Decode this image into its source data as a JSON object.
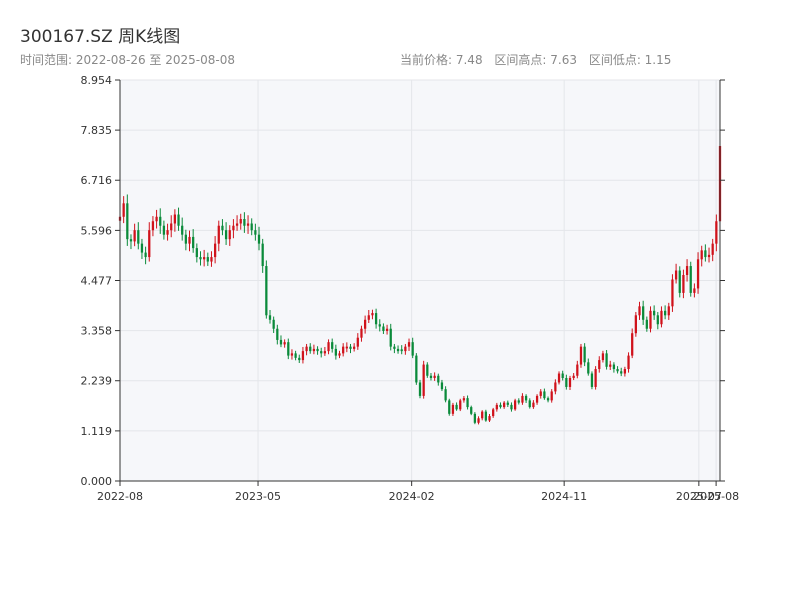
{
  "header": {
    "title": "300167.SZ 周K线图",
    "range_label": "时间范围: 2022-08-26 至 2025-08-08",
    "current_price_label": "当前价格: 7.48",
    "high_label": "区间高点: 7.63",
    "low_label": "区间低点: 1.15"
  },
  "colors": {
    "up": "#d0121b",
    "down": "#0a8a3a",
    "plot_bg": "#f6f7fa",
    "grid": "#e4e6ea",
    "axis": "#333333"
  },
  "chart_data": {
    "type": "candlestick",
    "title": "300167.SZ 周K线图",
    "ylim": [
      0.0,
      8.954
    ],
    "y_ticks": [
      "0.000",
      "1.119",
      "2.239",
      "3.358",
      "4.477",
      "5.596",
      "6.716",
      "7.835",
      "8.954"
    ],
    "x_ticks": [
      "2022-08",
      "2023-05",
      "2024-02",
      "2024-11",
      "2025-07",
      "2025-08"
    ],
    "grid": true,
    "start_date": "2022-08-26",
    "end_date": "2025-08-08",
    "current_price": 7.48,
    "high": 7.63,
    "low": 1.15,
    "closes": [
      5.9,
      6.2,
      5.4,
      5.35,
      5.6,
      5.3,
      5.1,
      5.0,
      5.6,
      5.8,
      5.9,
      5.7,
      5.5,
      5.6,
      5.75,
      5.95,
      5.7,
      5.5,
      5.3,
      5.45,
      5.2,
      5.0,
      4.95,
      5.0,
      4.9,
      5.0,
      5.3,
      5.7,
      5.6,
      5.4,
      5.6,
      5.7,
      5.75,
      5.85,
      5.7,
      5.75,
      5.6,
      5.5,
      5.3,
      4.8,
      3.7,
      3.6,
      3.4,
      3.15,
      3.05,
      3.1,
      2.8,
      2.85,
      2.75,
      2.7,
      2.9,
      3.0,
      2.9,
      2.95,
      2.9,
      2.85,
      2.9,
      3.1,
      2.95,
      2.8,
      2.85,
      3.0,
      3.0,
      2.95,
      3.0,
      3.2,
      3.4,
      3.6,
      3.7,
      3.75,
      3.5,
      3.45,
      3.35,
      3.4,
      3.0,
      2.95,
      2.9,
      2.9,
      3.0,
      3.1,
      2.8,
      2.2,
      1.9,
      2.6,
      2.35,
      2.3,
      2.35,
      2.2,
      2.05,
      1.8,
      1.5,
      1.7,
      1.6,
      1.8,
      1.85,
      1.65,
      1.5,
      1.3,
      1.4,
      1.55,
      1.35,
      1.45,
      1.6,
      1.7,
      1.65,
      1.75,
      1.7,
      1.6,
      1.8,
      1.75,
      1.9,
      1.8,
      1.65,
      1.75,
      1.9,
      2.0,
      1.85,
      1.8,
      2.0,
      2.2,
      2.4,
      2.3,
      2.1,
      2.3,
      2.35,
      2.6,
      3.0,
      2.65,
      2.4,
      2.1,
      2.5,
      2.7,
      2.85,
      2.55,
      2.6,
      2.5,
      2.45,
      2.4,
      2.5,
      2.8,
      3.3,
      3.7,
      3.9,
      3.6,
      3.4,
      3.8,
      3.7,
      3.5,
      3.8,
      3.7,
      3.9,
      4.5,
      4.7,
      4.2,
      4.6,
      4.8,
      4.2,
      4.3,
      4.95,
      5.15,
      5.0,
      5.05,
      5.3,
      5.8,
      7.48
    ]
  }
}
